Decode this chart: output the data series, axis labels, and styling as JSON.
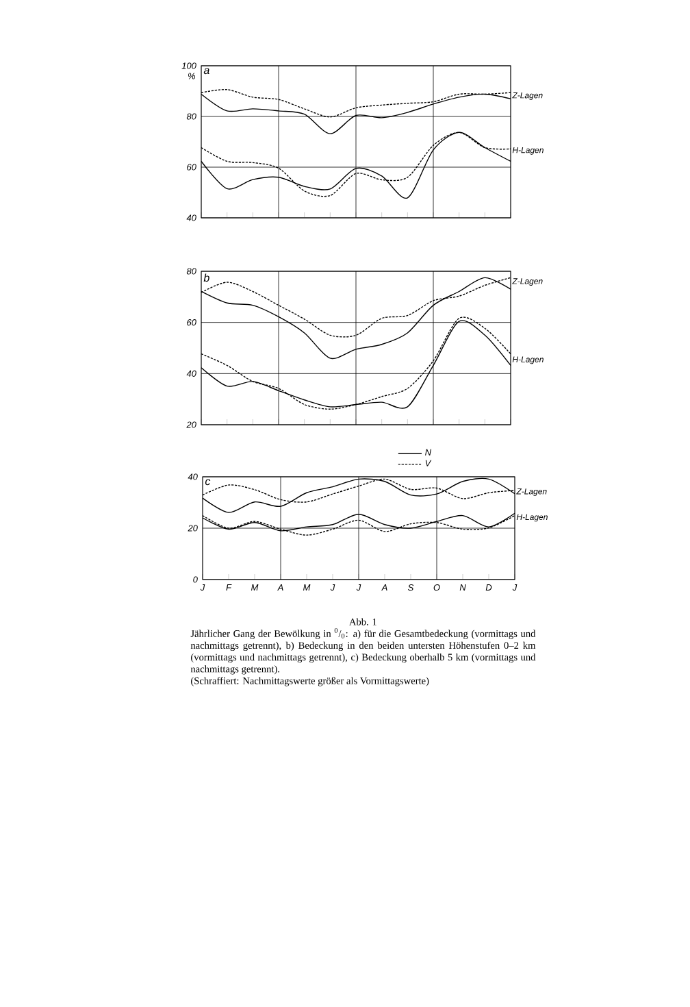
{
  "chart_data": [
    {
      "type": "line",
      "title": "a",
      "ylabel": "%",
      "categories": [
        null,
        null,
        null,
        null,
        null,
        null,
        null,
        null,
        null,
        null,
        null,
        null,
        null
      ],
      "ylim": [
        40,
        100
      ],
      "yticks": [
        40,
        60,
        80,
        100
      ],
      "grid": true,
      "annotations": [
        "Z-Lagen",
        "H-Lagen"
      ],
      "series": [
        {
          "color": "#000000",
          "line_style": "solid",
          "values": [
            88.8,
            82.2,
            83,
            82.2,
            80.9,
            73.2,
            80.4,
            79.5,
            81.6,
            84.9,
            87.6,
            88.8,
            87
          ]
        },
        {
          "color": "#000000",
          "line_style": "dashed",
          "values": [
            89.4,
            90.6,
            87.6,
            86.7,
            83,
            79.8,
            83.4,
            84.5,
            85.2,
            85.8,
            88.8,
            88.8,
            89.4
          ]
        },
        {
          "color": "#000000",
          "line_style": "solid",
          "values": [
            62.3,
            51.5,
            55.1,
            56,
            52.4,
            51.4,
            59.5,
            56.5,
            47.9,
            66.8,
            73.7,
            67.7,
            62.3
          ]
        },
        {
          "color": "#000000",
          "line_style": "dashed",
          "values": [
            67.7,
            62.3,
            61.8,
            59.6,
            50.6,
            48.8,
            57.5,
            55,
            56,
            68.6,
            73.7,
            67.7,
            67.2
          ]
        }
      ]
    },
    {
      "type": "line",
      "title": "b",
      "categories": [
        null,
        null,
        null,
        null,
        null,
        null,
        null,
        null,
        null,
        null,
        null,
        null,
        null
      ],
      "ylim": [
        20,
        80
      ],
      "yticks": [
        20,
        40,
        60,
        80
      ],
      "grid": true,
      "annotations": [
        "Z-Lagen",
        "H-Lagen"
      ],
      "series": [
        {
          "color": "#000000",
          "line_style": "solid",
          "values": [
            72.1,
            67.6,
            66.7,
            62.2,
            55.9,
            46,
            49.5,
            51.4,
            55.9,
            66.7,
            72.1,
            77.5,
            73
          ]
        },
        {
          "color": "#000000",
          "line_style": "dashed",
          "values": [
            71.7,
            75.7,
            72.1,
            66.7,
            61.3,
            55,
            55,
            61.6,
            62.7,
            68.5,
            70.3,
            74.5,
            77.5
          ]
        },
        {
          "color": "#000000",
          "line_style": "solid",
          "values": [
            42.3,
            35.1,
            36.9,
            33.3,
            29.7,
            27,
            27.9,
            28.8,
            27,
            43.2,
            60.4,
            55,
            43.2
          ]
        },
        {
          "color": "#000000",
          "line_style": "dashed",
          "values": [
            47.7,
            43.2,
            36.9,
            34.2,
            27.9,
            26.1,
            27.9,
            31,
            34.2,
            45,
            61.6,
            57.7,
            47.7
          ]
        }
      ]
    },
    {
      "type": "line",
      "title": "c",
      "categories": [
        "J",
        "F",
        "M",
        "A",
        "M",
        "J",
        "J",
        "A",
        "S",
        "O",
        "N",
        "D",
        "J"
      ],
      "ylim": [
        0,
        40
      ],
      "yticks": [
        0,
        20,
        40
      ],
      "grid": true,
      "legend": "top right",
      "annotations": [
        "Z-Lagen",
        "H-Lagen",
        "Abb. 1",
        "Jährlicher Gang der Bewölkung in $^{0}$/$_{0}$: a) für die Gesamtbedeckung (vormittags und nachmittags getrennt), b) Bedeckung in den beiden untersten Höhenstufen 0–2 km (vormittags und nachmittags getrennt), c) Bedeckung oberhalb 5 km (vormittags und nachmittags getrennt).",
        "(Schraffiert: Nachmittagswerte größer als Vormittagswerte)"
      ],
      "series": [
        {
          "name": "N",
          "color": "#000000",
          "line_style": "solid",
          "values": [
            31.7,
            26.1,
            30.2,
            28.5,
            33.8,
            36.1,
            39.1,
            38.2,
            32.9,
            33.3,
            38.2,
            39.1,
            33.4
          ]
        },
        {
          "name": "V",
          "color": "#000000",
          "line_style": "dashed",
          "values": [
            32.9,
            36.8,
            35,
            31.1,
            30.2,
            33.3,
            36.4,
            39.1,
            35.1,
            35.6,
            31.5,
            33.8,
            34.7
          ]
        },
        {
          "color": "#000000",
          "line_style": "solid",
          "values": [
            24,
            19.6,
            22.2,
            19,
            20.5,
            21.4,
            25.4,
            21.4,
            20,
            22.6,
            24.9,
            20.5,
            25.8
          ]
        },
        {
          "color": "#000000",
          "line_style": "dashed",
          "values": [
            24.9,
            20,
            22.6,
            19.6,
            17.3,
            19.6,
            23.1,
            18.7,
            21.7,
            22.2,
            19.6,
            20.1,
            24.9
          ]
        }
      ]
    }
  ]
}
